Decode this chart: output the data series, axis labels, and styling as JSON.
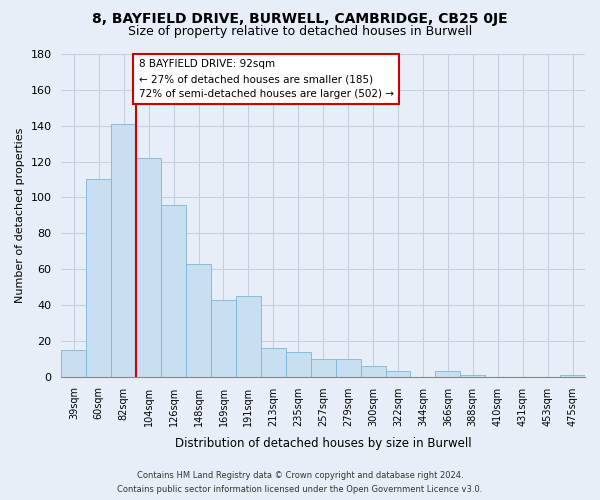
{
  "title": "8, BAYFIELD DRIVE, BURWELL, CAMBRIDGE, CB25 0JE",
  "subtitle": "Size of property relative to detached houses in Burwell",
  "xlabel": "Distribution of detached houses by size in Burwell",
  "ylabel": "Number of detached properties",
  "categories": [
    "39sqm",
    "60sqm",
    "82sqm",
    "104sqm",
    "126sqm",
    "148sqm",
    "169sqm",
    "191sqm",
    "213sqm",
    "235sqm",
    "257sqm",
    "279sqm",
    "300sqm",
    "322sqm",
    "344sqm",
    "366sqm",
    "388sqm",
    "410sqm",
    "431sqm",
    "453sqm",
    "475sqm"
  ],
  "values": [
    15,
    110,
    141,
    122,
    96,
    63,
    43,
    45,
    16,
    14,
    10,
    10,
    6,
    3,
    0,
    3,
    1,
    0,
    0,
    0,
    1
  ],
  "bar_color": "#c8dff2",
  "bar_edge_color": "#7ab5d8",
  "highlight_line_color": "#cc0000",
  "ylim": [
    0,
    180
  ],
  "yticks": [
    0,
    20,
    40,
    60,
    80,
    100,
    120,
    140,
    160,
    180
  ],
  "annotation_box_text": "8 BAYFIELD DRIVE: 92sqm\n← 27% of detached houses are smaller (185)\n72% of semi-detached houses are larger (502) →",
  "annotation_box_color": "#ffffff",
  "annotation_box_edge_color": "#cc0000",
  "footer_line1": "Contains HM Land Registry data © Crown copyright and database right 2024.",
  "footer_line2": "Contains public sector information licensed under the Open Government Licence v3.0.",
  "background_color": "#e8eef8",
  "grid_color": "#c5cfe0",
  "title_fontsize": 10,
  "subtitle_fontsize": 9
}
